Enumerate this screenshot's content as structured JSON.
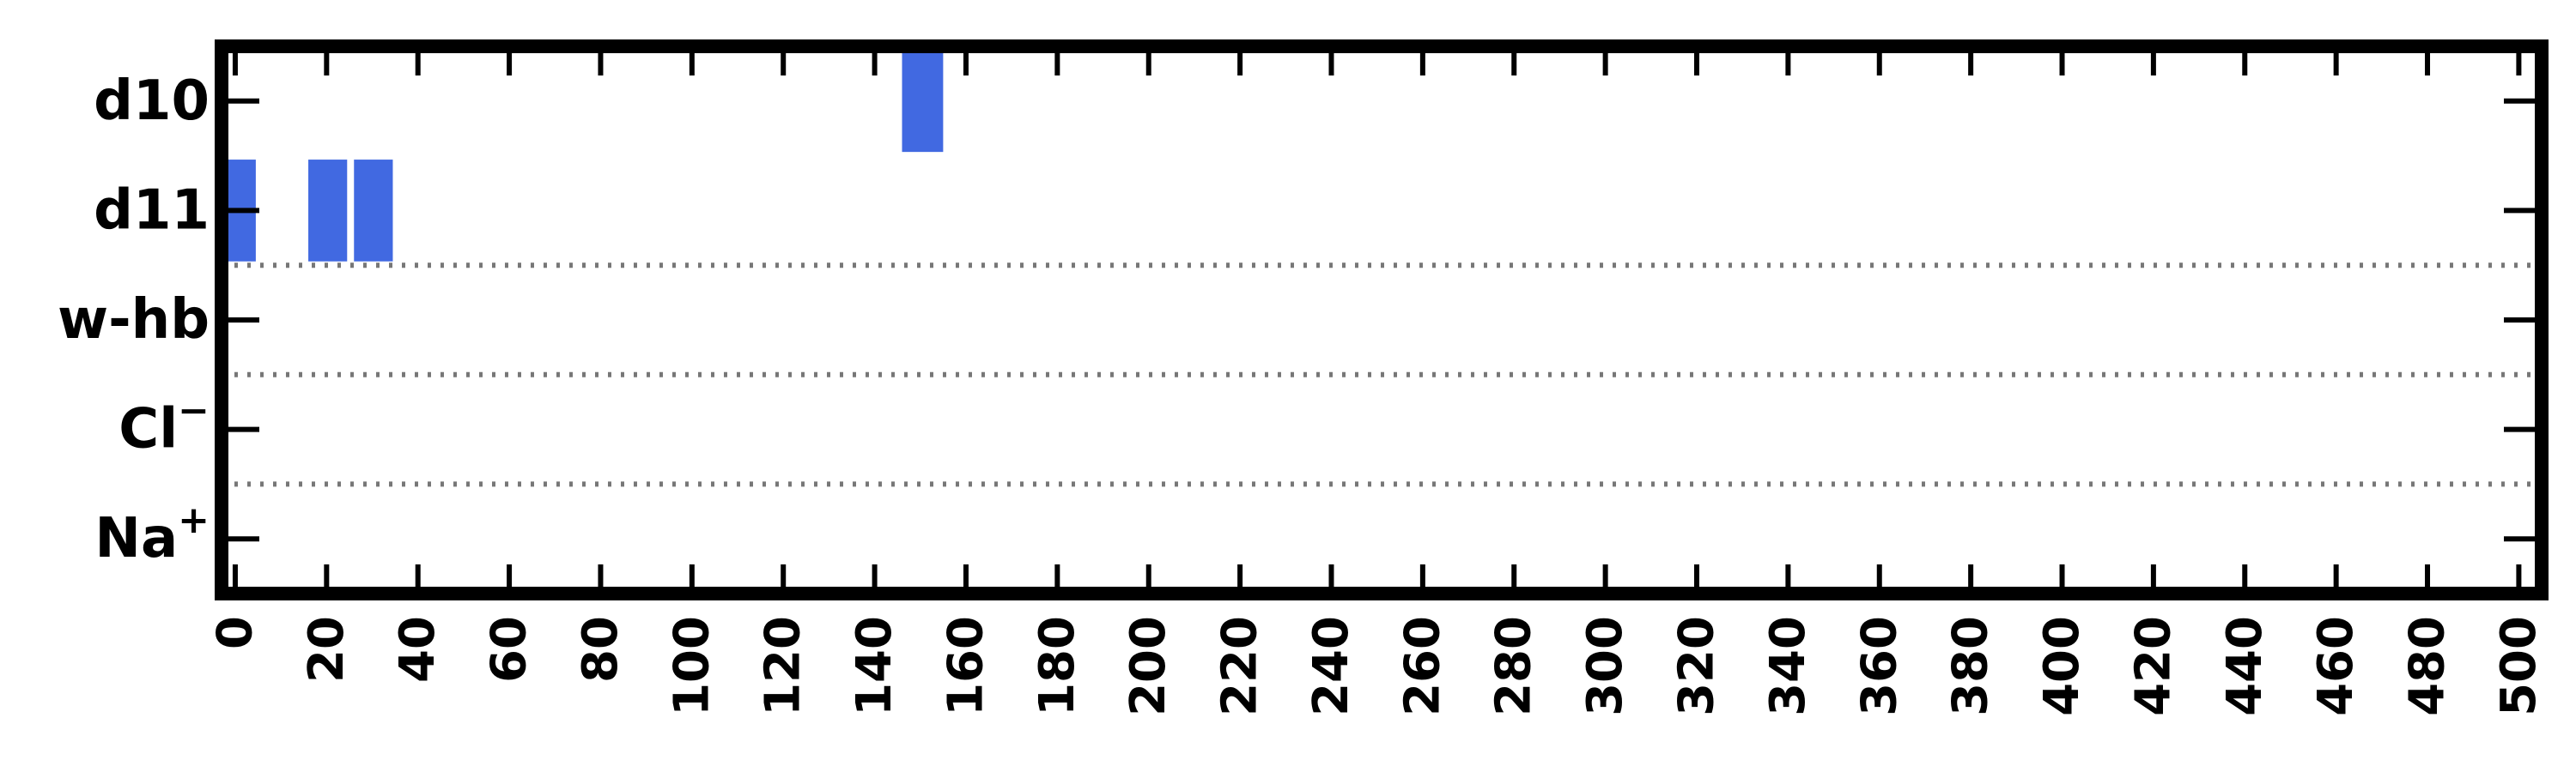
{
  "chart_data": {
    "type": "bar",
    "orientation": "horizontal-timeline",
    "xlim": [
      -3,
      505
    ],
    "x_ticks": [
      0,
      20,
      40,
      60,
      80,
      100,
      120,
      140,
      160,
      180,
      200,
      220,
      240,
      260,
      280,
      300,
      320,
      340,
      360,
      380,
      400,
      420,
      440,
      460,
      480,
      500
    ],
    "categories": [
      "d10",
      "d11",
      "w-hb",
      "Cl",
      "Na"
    ],
    "category_labels": [
      {
        "text": "d10",
        "sup": ""
      },
      {
        "text": "d11",
        "sup": ""
      },
      {
        "text": "w-hb",
        "sup": ""
      },
      {
        "text": "Cl",
        "sup": "−"
      },
      {
        "text": "Na",
        "sup": "+"
      }
    ],
    "series": [
      {
        "color": "#4169e1",
        "segments": [
          {
            "category": "d10",
            "start": 146,
            "end": 155
          },
          {
            "category": "d11",
            "start": -3,
            "end": 4.5
          },
          {
            "category": "d11",
            "start": 16,
            "end": 24.5
          },
          {
            "category": "d11",
            "start": 26,
            "end": 34.5
          }
        ]
      }
    ],
    "separators_between": [
      [
        "d11",
        "w-hb"
      ],
      [
        "w-hb",
        "Cl"
      ],
      [
        "Cl",
        "Na"
      ]
    ],
    "separator_style": "dotted",
    "separator_color": "#777777",
    "grid": false,
    "legend": "none",
    "title": "",
    "xlabel": "",
    "ylabel": ""
  }
}
